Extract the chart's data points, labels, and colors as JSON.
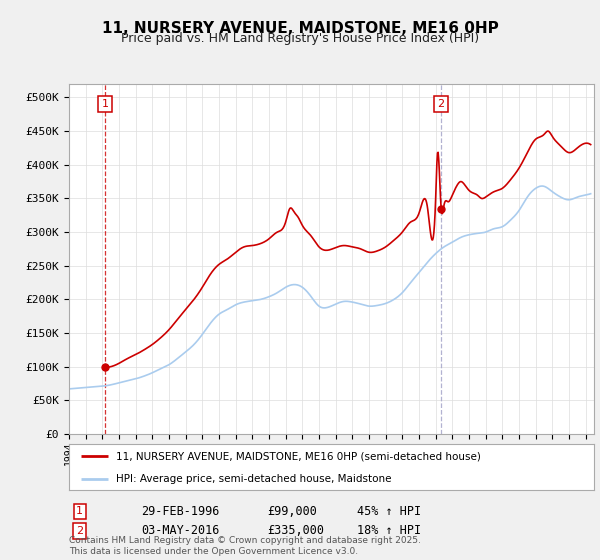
{
  "title": "11, NURSERY AVENUE, MAIDSTONE, ME16 0HP",
  "subtitle": "Price paid vs. HM Land Registry's House Price Index (HPI)",
  "bg_color": "#f0f0f0",
  "plot_bg_color": "#ffffff",
  "hpi_color": "#aaccee",
  "price_color": "#cc0000",
  "sale1_x": 1996.16,
  "sale1_y": 99000,
  "sale2_x": 2016.33,
  "sale2_y": 335000,
  "sale1_label": "29-FEB-1996",
  "sale1_price": "£99,000",
  "sale1_hpi": "45% ↑ HPI",
  "sale2_label": "03-MAY-2016",
  "sale2_price": "£335,000",
  "sale2_hpi": "18% ↑ HPI",
  "legend_line1": "11, NURSERY AVENUE, MAIDSTONE, ME16 0HP (semi-detached house)",
  "legend_line2": "HPI: Average price, semi-detached house, Maidstone",
  "footer": "Contains HM Land Registry data © Crown copyright and database right 2025.\nThis data is licensed under the Open Government Licence v3.0.",
  "ylim": [
    0,
    520000
  ],
  "xlim_left": 1994.0,
  "xlim_right": 2025.5,
  "yticks": [
    0,
    50000,
    100000,
    150000,
    200000,
    250000,
    300000,
    350000,
    400000,
    450000,
    500000
  ],
  "ytick_labels": [
    "£0",
    "£50K",
    "£100K",
    "£150K",
    "£200K",
    "£250K",
    "£300K",
    "£350K",
    "£400K",
    "£450K",
    "£500K"
  ]
}
